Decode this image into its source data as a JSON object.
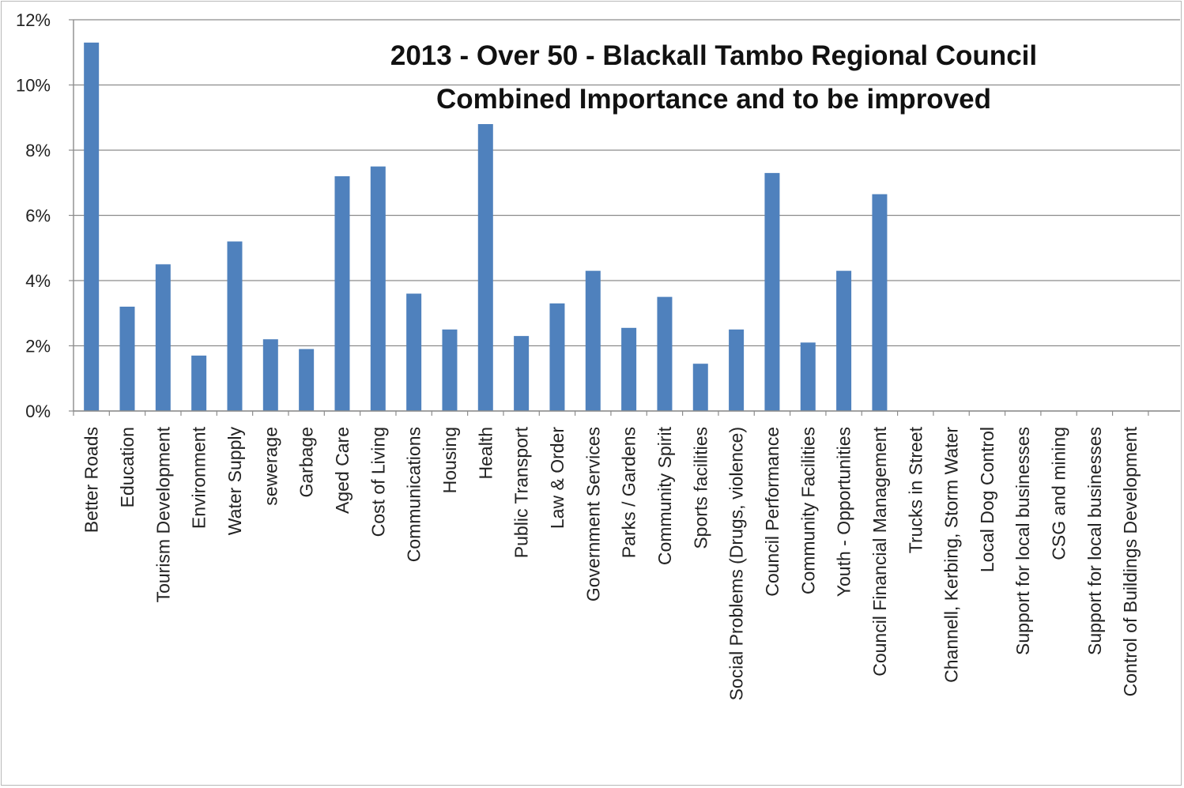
{
  "chart_data": {
    "type": "bar",
    "title": "2013 - Over 50 - Blackall Tambo Regional Council",
    "subtitle": "Combined Importance and to be improved",
    "xlabel": "",
    "ylabel": "",
    "ylim": [
      0,
      12
    ],
    "yticks": [
      "0%",
      "2%",
      "4%",
      "6%",
      "8%",
      "10%",
      "12%"
    ],
    "grid": true,
    "legend": "none",
    "color": "#4F81BD",
    "categories": [
      "Better Roads",
      "Education",
      "Tourism Development",
      "Environment",
      "Water Supply",
      "sewerage",
      "Garbage",
      "Aged Care",
      "Cost of Living",
      "Communications",
      "Housing",
      "Health",
      "Public Transport",
      "Law & Order",
      "Government Services",
      "Parks / Gardens",
      "Community Spirit",
      "Sports facilities",
      "Social Problems (Drugs, violence)",
      "Council Performance",
      "Community Facilities",
      "Youth - Opportunities",
      "Council Financial Management",
      "Trucks in Street",
      "Channell, Kerbing, Storm Water",
      "Local Dog Control",
      "Support for local businesses",
      "CSG and mining",
      "Support for local businesses",
      "Control of Buildings Development"
    ],
    "values": [
      11.3,
      3.2,
      4.5,
      1.7,
      5.2,
      2.2,
      1.9,
      7.2,
      7.5,
      3.6,
      2.5,
      8.8,
      2.3,
      3.3,
      4.3,
      2.55,
      3.5,
      1.45,
      2.5,
      7.3,
      2.1,
      4.3,
      6.65,
      0,
      0,
      0,
      0,
      0,
      0,
      0
    ]
  }
}
